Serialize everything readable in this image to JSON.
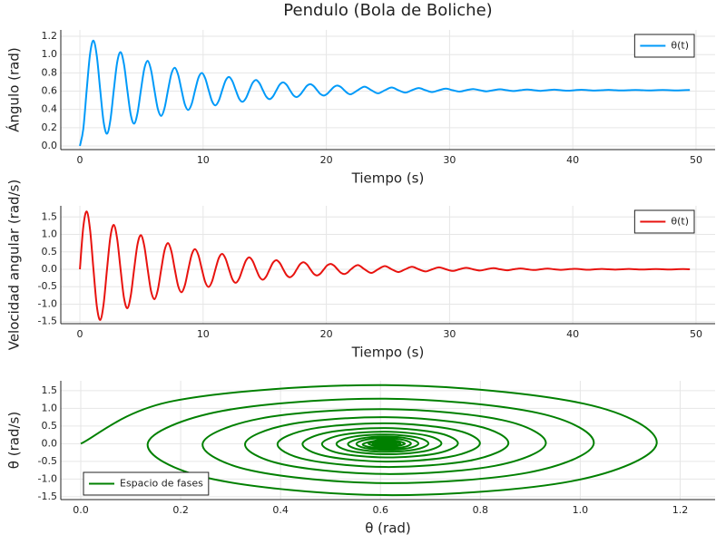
{
  "chart_data": [
    {
      "type": "line",
      "title": "Pendulo (Bola de Boliche)",
      "xlabel": "Tiempo (s)",
      "ylabel": "Ángulo (rad)",
      "x": [
        0,
        0.275,
        0.55,
        0.825,
        1.1,
        1.375,
        1.65,
        1.925,
        2.2,
        2.475,
        2.75,
        3.025,
        3.3,
        3.575,
        3.85,
        4.125,
        4.4,
        4.675,
        4.95,
        5.225,
        5.5,
        5.775,
        6.05,
        6.325,
        6.6,
        6.875,
        7.15,
        7.425,
        7.7,
        7.975,
        8.25,
        8.525,
        8.8,
        9.075,
        9.35,
        9.625,
        9.9,
        10.175,
        10.45,
        10.725,
        11,
        11.275,
        11.55,
        11.825,
        12.1,
        12.375,
        12.65,
        12.925,
        13.2,
        13.475,
        13.75,
        14.025,
        14.3,
        14.575,
        14.85,
        15.125,
        15.4,
        15.675,
        15.95,
        16.225,
        16.5,
        16.775,
        17.05,
        17.325,
        17.6,
        17.875,
        18.15,
        18.425,
        18.7,
        18.975,
        19.25,
        19.525,
        19.8,
        20.075,
        20.35,
        20.625,
        20.9,
        21.175,
        21.45,
        21.725,
        22,
        22.55,
        23.1,
        23.65,
        24.2,
        24.75,
        25.3,
        25.85,
        26.4,
        26.95,
        27.5,
        28.05,
        28.6,
        29.15,
        29.7,
        30.25,
        30.8,
        31.35,
        31.9,
        32.45,
        33,
        33.55,
        34.1,
        34.65,
        35.2,
        35.75,
        36.3,
        36.85,
        37.4,
        37.95,
        38.5,
        39.05,
        39.6,
        40.15,
        40.7,
        41.25,
        41.8,
        42.35,
        42.9,
        43.45,
        44,
        44.55,
        45.1,
        45.65,
        46.2,
        46.75,
        47.3,
        47.85,
        48.4,
        48.95,
        49.5
      ],
      "series": [
        {
          "name": "θ(t)",
          "color": "#009af9",
          "values": [
            0,
            0.186,
            0.61,
            1.007,
            1.153,
            0.982,
            0.61,
            0.262,
            0.134,
            0.284,
            0.61,
            0.915,
            1.027,
            0.896,
            0.61,
            0.343,
            0.244,
            0.36,
            0.61,
            0.844,
            0.931,
            0.829,
            0.61,
            0.405,
            0.329,
            0.418,
            0.61,
            0.79,
            0.856,
            0.778,
            0.61,
            0.452,
            0.394,
            0.462,
            0.61,
            0.748,
            0.799,
            0.739,
            0.61,
            0.489,
            0.444,
            0.497,
            0.61,
            0.716,
            0.755,
            0.709,
            0.61,
            0.517,
            0.483,
            0.523,
            0.61,
            0.692,
            0.722,
            0.686,
            0.61,
            0.539,
            0.512,
            0.543,
            0.61,
            0.673,
            0.696,
            0.669,
            0.61,
            0.555,
            0.535,
            0.561,
            0.61,
            0.658,
            0.676,
            0.655,
            0.61,
            0.568,
            0.552,
            0.571,
            0.61,
            0.647,
            0.661,
            0.645,
            0.61,
            0.578,
            0.566,
            0.61,
            0.649,
            0.61,
            0.576,
            0.61,
            0.64,
            0.61,
            0.584,
            0.61,
            0.633,
            0.61,
            0.59,
            0.61,
            0.627,
            0.61,
            0.595,
            0.61,
            0.623,
            0.61,
            0.598,
            0.61,
            0.62,
            0.61,
            0.601,
            0.61,
            0.618,
            0.61,
            0.603,
            0.61,
            0.616,
            0.61,
            0.605,
            0.61,
            0.615,
            0.61,
            0.606,
            0.61,
            0.614,
            0.61,
            0.607,
            0.61,
            0.613,
            0.61,
            0.608,
            0.61,
            0.612,
            0.61,
            0.608,
            0.61,
            0.612
          ]
        }
      ],
      "xlim": [
        -1.55,
        51.55
      ],
      "ylim": [
        -0.04,
        1.27
      ],
      "xticks": [
        0,
        10,
        20,
        30,
        40,
        50
      ],
      "yticks": [
        {
          "value": 0,
          "label": "0.0"
        },
        0.2,
        0.4,
        0.6,
        0.8,
        {
          "value": 1,
          "label": "1.0"
        },
        1.2
      ],
      "grid": true,
      "legend": "top-right"
    },
    {
      "type": "line",
      "xlabel": "Tiempo (s)",
      "ylabel": "Velocidad angular (rad/s)",
      "x": [
        0,
        0.275,
        0.55,
        0.825,
        1.1,
        1.375,
        1.65,
        1.925,
        2.2,
        2.475,
        2.75,
        3.025,
        3.3,
        3.575,
        3.85,
        4.125,
        4.4,
        4.675,
        4.95,
        5.225,
        5.5,
        5.775,
        6.05,
        6.325,
        6.6,
        6.875,
        7.15,
        7.425,
        7.7,
        7.975,
        8.25,
        8.525,
        8.8,
        9.075,
        9.35,
        9.625,
        9.9,
        10.175,
        10.45,
        10.725,
        11,
        11.275,
        11.55,
        11.825,
        12.1,
        12.375,
        12.65,
        12.925,
        13.2,
        13.475,
        13.75,
        14.025,
        14.3,
        14.575,
        14.85,
        15.125,
        15.4,
        15.675,
        15.95,
        16.225,
        16.5,
        16.775,
        17.05,
        17.325,
        17.6,
        17.875,
        18.15,
        18.425,
        18.7,
        18.975,
        19.25,
        19.525,
        19.8,
        20.075,
        20.35,
        20.625,
        20.9,
        21.175,
        21.45,
        21.725,
        22,
        22.55,
        23.1,
        23.65,
        24.2,
        24.75,
        25.3,
        25.85,
        26.4,
        26.95,
        27.5,
        28.05,
        28.6,
        29.15,
        29.7,
        30.25,
        30.8,
        31.35,
        31.9,
        32.45,
        33,
        33.55,
        34.1,
        34.65,
        35.2,
        35.75,
        36.3,
        36.85,
        37.4,
        37.95,
        38.5,
        39.05,
        39.6,
        40.15,
        40.7,
        41.25,
        41.8,
        42.35,
        42.9,
        43.45,
        44,
        44.55,
        45.1,
        45.65,
        46.2,
        46.75,
        47.3,
        47.85,
        48.4,
        48.95,
        49.5
      ],
      "series": [
        {
          "name": "θ(t)",
          "color": "#e8130f",
          "values": [
            0,
            1.211,
            1.658,
            1.134,
            0,
            -1.062,
            -1.453,
            -0.994,
            0,
            0.93,
            1.273,
            0.871,
            0,
            -0.815,
            -1.116,
            -0.763,
            0,
            0.714,
            0.978,
            0.669,
            0,
            -0.626,
            -0.857,
            -0.586,
            0,
            0.549,
            0.751,
            0.514,
            0,
            -0.481,
            -0.658,
            -0.45,
            0,
            0.422,
            0.577,
            0.395,
            0,
            -0.369,
            -0.506,
            -0.346,
            0,
            0.324,
            0.443,
            0.303,
            0,
            -0.284,
            -0.388,
            -0.266,
            0,
            0.249,
            0.34,
            0.233,
            0,
            -0.218,
            -0.298,
            -0.204,
            0,
            0.191,
            0.261,
            0.179,
            0,
            -0.167,
            -0.229,
            -0.157,
            0,
            0.147,
            0.201,
            0.137,
            0,
            -0.129,
            -0.176,
            -0.12,
            0,
            0.113,
            0.154,
            0.105,
            0,
            -0.099,
            -0.135,
            -0.093,
            0,
            0.119,
            0,
            -0.104,
            0,
            0.091,
            0,
            -0.08,
            0,
            0.07,
            0,
            -0.061,
            0,
            0.054,
            0,
            -0.047,
            0,
            0.041,
            0,
            -0.036,
            0,
            0.032,
            0,
            -0.028,
            0,
            0.024,
            0,
            -0.021,
            0,
            0.019,
            0,
            -0.016,
            0,
            0.014,
            0,
            -0.013,
            0,
            0.011,
            0,
            -0.01,
            0,
            0.009,
            0,
            -0.007,
            0,
            0.007,
            0,
            -0.006,
            0,
            0.005,
            0
          ]
        }
      ],
      "xlim": [
        -1.55,
        51.55
      ],
      "ylim": [
        -1.56,
        1.82
      ],
      "xticks": [
        0,
        10,
        20,
        30,
        40,
        50
      ],
      "yticks": [
        -1.5,
        {
          "value": -1,
          "label": "-1.0"
        },
        -0.5,
        {
          "value": 0,
          "label": "0.0"
        },
        0.5,
        {
          "value": 1,
          "label": "1.0"
        },
        1.5
      ],
      "grid": true,
      "legend": "top-right"
    },
    {
      "type": "line",
      "xlabel": "θ (rad)",
      "ylabel": "θ (rad/s)",
      "x": [
        0,
        0.186,
        0.61,
        1.007,
        1.153,
        0.982,
        0.61,
        0.262,
        0.134,
        0.284,
        0.61,
        0.915,
        1.027,
        0.896,
        0.61,
        0.343,
        0.244,
        0.36,
        0.61,
        0.844,
        0.931,
        0.829,
        0.61,
        0.405,
        0.329,
        0.418,
        0.61,
        0.79,
        0.856,
        0.778,
        0.61,
        0.452,
        0.394,
        0.462,
        0.61,
        0.748,
        0.799,
        0.739,
        0.61,
        0.489,
        0.444,
        0.497,
        0.61,
        0.716,
        0.755,
        0.709,
        0.61,
        0.517,
        0.483,
        0.523,
        0.61,
        0.692,
        0.722,
        0.686,
        0.61,
        0.539,
        0.512,
        0.543,
        0.61,
        0.673,
        0.696,
        0.669,
        0.61,
        0.555,
        0.535,
        0.561,
        0.61,
        0.658,
        0.676,
        0.655,
        0.61,
        0.568,
        0.552,
        0.571,
        0.61,
        0.647,
        0.661,
        0.645,
        0.61,
        0.578,
        0.566,
        0.61,
        0.649,
        0.61,
        0.576,
        0.61,
        0.64,
        0.61,
        0.584,
        0.61,
        0.633,
        0.61,
        0.59,
        0.61,
        0.627,
        0.61,
        0.595,
        0.61,
        0.623,
        0.61,
        0.598,
        0.61,
        0.62,
        0.61,
        0.601,
        0.61,
        0.618,
        0.61,
        0.603,
        0.61,
        0.616,
        0.61,
        0.605,
        0.61,
        0.615,
        0.61,
        0.606,
        0.61,
        0.614,
        0.61,
        0.607,
        0.61,
        0.613,
        0.61,
        0.608,
        0.61,
        0.612,
        0.61,
        0.608,
        0.61,
        0.612
      ],
      "series": [
        {
          "name": "Espacio de fases",
          "color": "#008000",
          "values": [
            0,
            1.211,
            1.658,
            1.134,
            0,
            -1.062,
            -1.453,
            -0.994,
            0,
            0.93,
            1.273,
            0.871,
            0,
            -0.815,
            -1.116,
            -0.763,
            0,
            0.714,
            0.978,
            0.669,
            0,
            -0.626,
            -0.857,
            -0.586,
            0,
            0.549,
            0.751,
            0.514,
            0,
            -0.481,
            -0.658,
            -0.45,
            0,
            0.422,
            0.577,
            0.395,
            0,
            -0.369,
            -0.506,
            -0.346,
            0,
            0.324,
            0.443,
            0.303,
            0,
            -0.284,
            -0.388,
            -0.266,
            0,
            0.249,
            0.34,
            0.233,
            0,
            -0.218,
            -0.298,
            -0.204,
            0,
            0.191,
            0.261,
            0.179,
            0,
            -0.167,
            -0.229,
            -0.157,
            0,
            0.147,
            0.201,
            0.137,
            0,
            -0.129,
            -0.176,
            -0.12,
            0,
            0.113,
            0.154,
            0.105,
            0,
            -0.099,
            -0.135,
            -0.093,
            0,
            0.119,
            0,
            -0.104,
            0,
            0.091,
            0,
            -0.08,
            0,
            0.07,
            0,
            -0.061,
            0,
            0.054,
            0,
            -0.047,
            0,
            0.041,
            0,
            -0.036,
            0,
            0.032,
            0,
            -0.028,
            0,
            0.024,
            0,
            -0.021,
            0,
            0.019,
            0,
            -0.016,
            0,
            0.014,
            0,
            -0.013,
            0,
            0.011,
            0,
            -0.01,
            0,
            0.009,
            0,
            -0.007,
            0,
            0.007,
            0,
            -0.006,
            0,
            0.005,
            0
          ]
        }
      ],
      "xlim": [
        -0.04,
        1.27
      ],
      "ylim": [
        -1.58,
        1.78
      ],
      "xticks": [
        {
          "value": 0,
          "label": "0.0"
        },
        0.2,
        0.4,
        0.6,
        0.8,
        {
          "value": 1,
          "label": "1.0"
        },
        1.2
      ],
      "yticks": [
        -1.5,
        {
          "value": -1,
          "label": "-1.0"
        },
        -0.5,
        {
          "value": 0,
          "label": "0.0"
        },
        0.5,
        {
          "value": 1,
          "label": "1.0"
        },
        1.5
      ],
      "grid": true,
      "legend": "bottom-left"
    }
  ]
}
